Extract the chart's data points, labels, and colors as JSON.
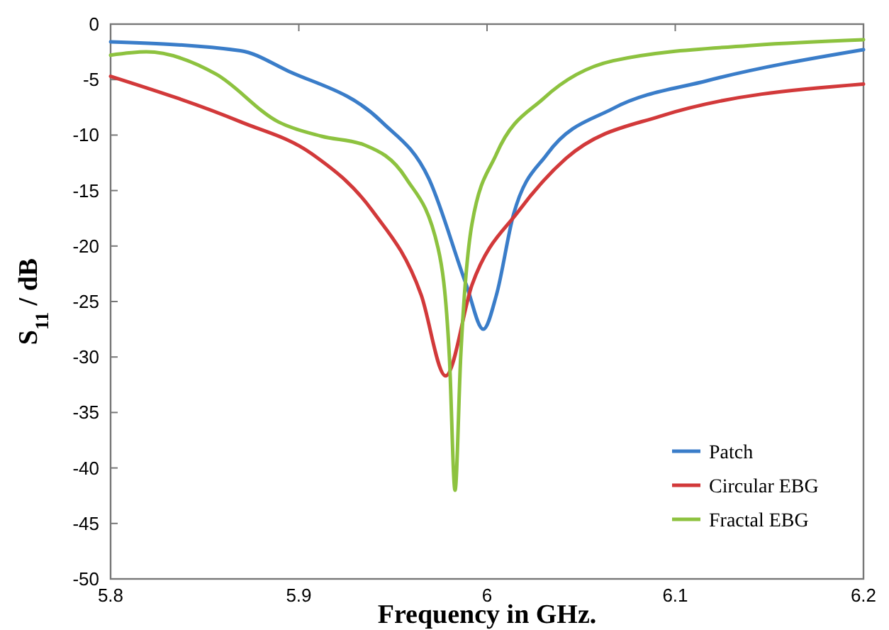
{
  "chart_data": {
    "type": "line",
    "xlabel": "Frequency in GHz.",
    "ylabel": "S$_{11}$ / dB",
    "xlim": [
      5.8,
      6.2
    ],
    "ylim": [
      -50,
      0
    ],
    "xticks": [
      5.8,
      5.9,
      6,
      6.1,
      6.2
    ],
    "yticks": [
      -50,
      -45,
      -40,
      -35,
      -30,
      -25,
      -20,
      -15,
      -10,
      -5,
      0
    ],
    "grid": false,
    "legend": "bottom right",
    "line_style": "solid",
    "marker": "none",
    "series": [
      {
        "name": "Patch",
        "color": "#3a7dc9",
        "x": [
          5.8,
          5.869,
          5.894,
          5.944,
          5.969,
          5.989,
          5.998,
          6.005,
          6.014,
          6.032,
          6.067,
          6.117,
          6.2
        ],
        "values": [
          -1.6,
          -2.4,
          -4.2,
          -8.8,
          -13.9,
          -23.5,
          -27.5,
          -24.4,
          -17.2,
          -11.7,
          -7.6,
          -5.1,
          -2.3
        ]
      },
      {
        "name": "Circular EBG",
        "color": "#d2393a",
        "x": [
          5.8,
          5.869,
          5.907,
          5.939,
          5.965,
          5.978,
          5.992,
          6.017,
          6.042,
          6.092,
          6.2
        ],
        "values": [
          -4.7,
          -8.8,
          -11.7,
          -16.8,
          -24.4,
          -31.7,
          -23.5,
          -16.8,
          -12.1,
          -8.3,
          -5.4
        ]
      },
      {
        "name": "Fractal EBG",
        "color": "#8dc23f",
        "x": [
          5.8,
          5.819,
          5.856,
          5.889,
          5.912,
          5.935,
          5.957,
          5.974,
          5.98,
          5.983,
          5.986,
          5.992,
          6.005,
          6.03,
          6.067,
          6.142,
          6.2
        ],
        "values": [
          -2.8,
          -2.5,
          -4.5,
          -8.8,
          -10.1,
          -10.9,
          -13.9,
          -20.2,
          -30,
          -42,
          -30,
          -18,
          -11.7,
          -6.7,
          -3.3,
          -1.9,
          -1.4
        ]
      }
    ]
  }
}
